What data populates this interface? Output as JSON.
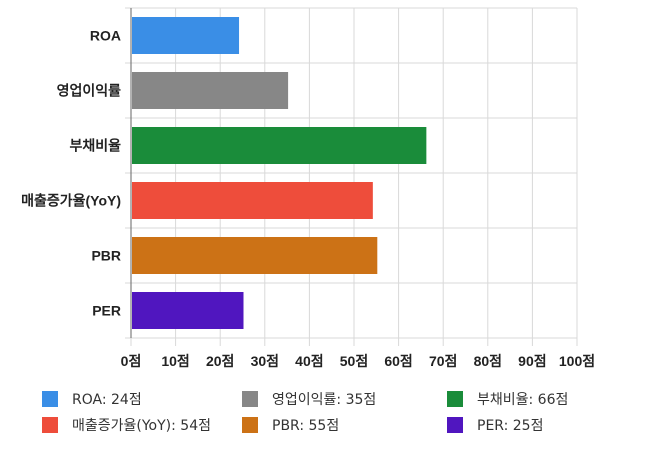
{
  "chart_data": {
    "type": "bar",
    "orientation": "horizontal",
    "categories": [
      "ROA",
      "영업이익률",
      "부채비율",
      "매출증가율(YoY)",
      "PBR",
      "PER"
    ],
    "values": [
      24,
      35,
      66,
      54,
      55,
      25
    ],
    "colors": [
      "#3a8ee6",
      "#878787",
      "#1a8c3a",
      "#ee4d3b",
      "#cc7216",
      "#5016bf"
    ],
    "xlim": [
      0,
      100
    ],
    "ticks": [
      0,
      10,
      20,
      30,
      40,
      50,
      60,
      70,
      80,
      90,
      100
    ],
    "tick_suffix": "점",
    "grid": true,
    "legend_position": "bottom",
    "legend": [
      "ROA: 24점",
      "영업이익률: 35점",
      "부채비율: 66점",
      "매출증가율(YoY): 54점",
      "PBR: 55점",
      "PER: 25점"
    ]
  }
}
